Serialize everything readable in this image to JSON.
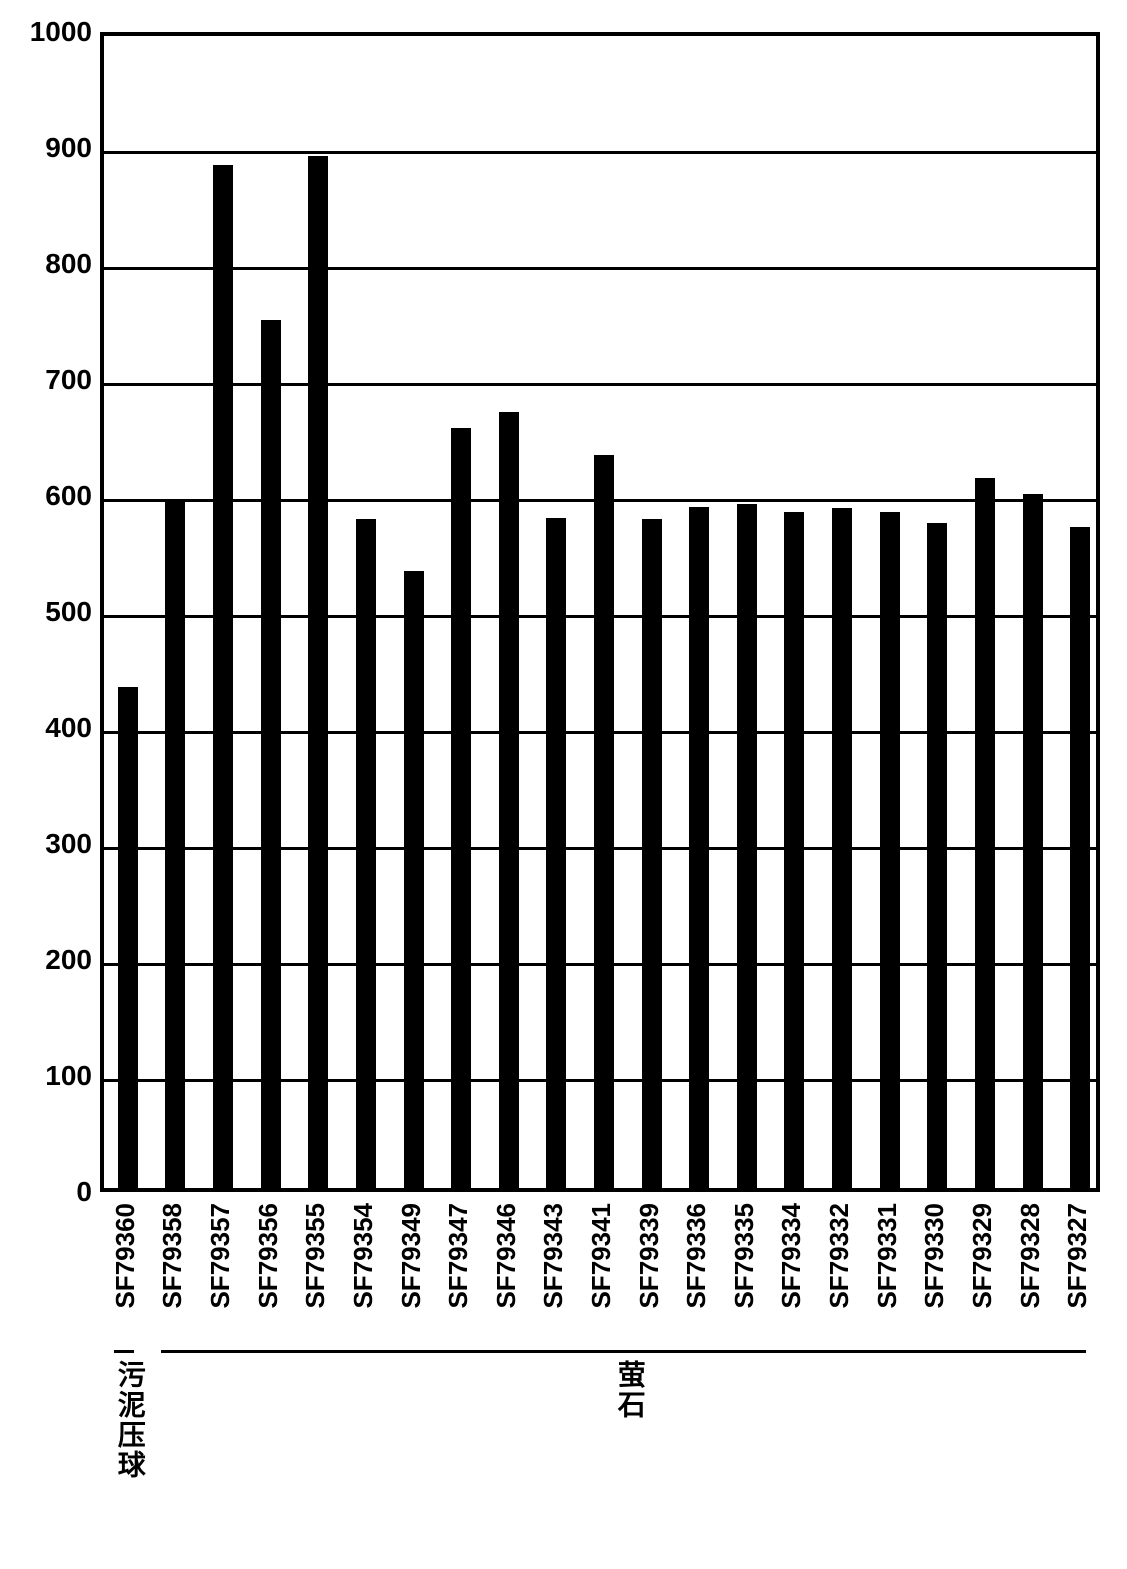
{
  "chart": {
    "type": "bar",
    "background_color": "#ffffff",
    "bar_color": "#000000",
    "border_color": "#000000",
    "grid_color": "#000000",
    "ylim": [
      0,
      1000
    ],
    "ytick_step": 100,
    "yticks": [
      0,
      100,
      200,
      300,
      400,
      500,
      600,
      700,
      800,
      900,
      1000
    ],
    "tick_fontsize": 28,
    "tick_fontweight": "bold",
    "bar_width_ratio": 0.42,
    "categories": [
      "SF79360",
      "SF79358",
      "SF79357",
      "SF79356",
      "SF79355",
      "SF79354",
      "SF79349",
      "SF79347",
      "SF79346",
      "SF79343",
      "SF79341",
      "SF79339",
      "SF79336",
      "SF79335",
      "SF79334",
      "SF79332",
      "SF79331",
      "SF79330",
      "SF79329",
      "SF79328",
      "SF79327"
    ],
    "values": [
      432,
      592,
      882,
      748,
      890,
      577,
      532,
      655,
      669,
      578,
      632,
      577,
      587,
      590,
      583,
      586,
      583,
      573,
      612,
      598,
      570
    ],
    "groups": [
      {
        "label": "污泥压球",
        "start": 0,
        "end": 0
      },
      {
        "label": "萤石",
        "start": 1,
        "end": 20
      }
    ]
  }
}
